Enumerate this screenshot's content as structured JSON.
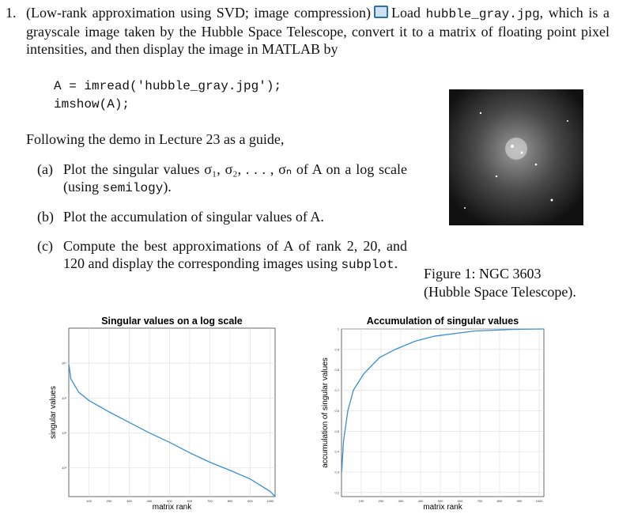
{
  "problem": {
    "number": "1.",
    "intro": [
      "(Low-rank approximation using SVD; image compression)",
      "Load",
      "hubble_gray.jpg",
      ", which is a grayscale image taken by the Hubble Space Telescope, convert it to a matrix of floating point pixel intensities, and then display the image in MATLAB by"
    ],
    "code": [
      "A = imread('hubble_gray.jpg');",
      "imshow(A);"
    ],
    "lead": "Following the demo in Lecture 23 as a guide,",
    "parts": [
      {
        "label": "(a)",
        "text": [
          "Plot the singular values σ₁, σ₂, . . . , σₙ of A on a log scale (using ",
          "semilogy",
          ")."
        ]
      },
      {
        "label": "(b)",
        "text": [
          "Plot the accumulation of singular values of A."
        ]
      },
      {
        "label": "(c)",
        "text": [
          "Compute the best approximations of A of rank 2, 20, and 120 and display the corresponding images using ",
          "subplot",
          "."
        ]
      }
    ],
    "caption": [
      "Figure 1: NGC 3603",
      "(Hubble Space Telescope)."
    ]
  },
  "chart_data": [
    {
      "type": "line",
      "title": "Singular values on a log scale",
      "x_label": "matrix rank",
      "y_label": "singular values",
      "x": [
        1,
        10,
        50,
        100,
        200,
        300,
        400,
        500,
        600,
        700,
        800,
        900,
        1000,
        1024
      ],
      "values": [
        8900,
        3550,
        1450,
        850,
        400,
        200,
        100,
        54,
        27,
        14.5,
        8.5,
        4.8,
        2.1,
        1.5
      ],
      "color": "#3a8fd0",
      "log_scale": true,
      "grid": true,
      "xlim": [
        0,
        1024
      ],
      "ylim": [
        1.5,
        100000
      ],
      "xticks": [
        100,
        200,
        300,
        400,
        500,
        600,
        700,
        800,
        900,
        1000
      ],
      "yticks": [
        {
          "value": 10,
          "label": "10¹"
        },
        {
          "value": 100,
          "label": "10²"
        },
        {
          "value": 1000,
          "label": "10³"
        },
        {
          "value": 10000,
          "label": "10⁴"
        }
      ]
    },
    {
      "type": "line",
      "title": "Accumulation of singular values",
      "x_label": "matrix rank",
      "y_label": "accumulation of singular values",
      "x": [
        1,
        10,
        32,
        60,
        112,
        192,
        272,
        372,
        472,
        672,
        872,
        1024
      ],
      "values": [
        0.3,
        0.45,
        0.6,
        0.7,
        0.78,
        0.86,
        0.9,
        0.94,
        0.965,
        0.99,
        0.998,
        1
      ],
      "color": "#3a8fd0",
      "log_scale": false,
      "grid": true,
      "xlim": [
        0,
        1024
      ],
      "ylim": [
        0.18,
        1
      ],
      "xticks": [
        100,
        200,
        300,
        400,
        500,
        600,
        700,
        800,
        900,
        1000
      ],
      "yticks": [
        0.2,
        0.3,
        0.4,
        0.5,
        0.6,
        0.7,
        0.8,
        0.9,
        1
      ]
    }
  ]
}
